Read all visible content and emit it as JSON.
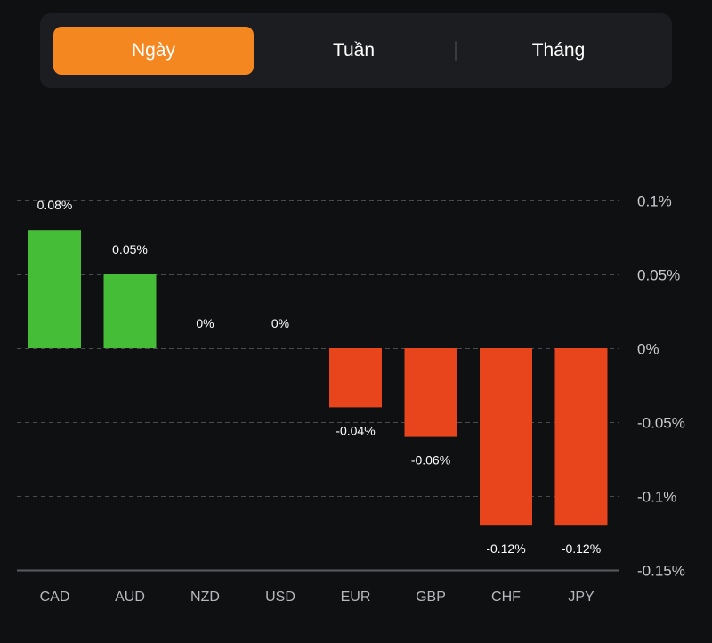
{
  "tabs": {
    "active_index": 0,
    "items": [
      {
        "label": "Ngày"
      },
      {
        "label": "Tuần"
      },
      {
        "label": "Tháng"
      }
    ]
  },
  "colors": {
    "background": "#0f1012",
    "tab_bar": "#1c1d20",
    "tab_active": "#f58720",
    "positive": "#45bd36",
    "negative": "#e8451c",
    "grid": "#4a4b50",
    "axis": "#5a5b60"
  },
  "chart_data": {
    "type": "bar",
    "title": "",
    "xlabel": "",
    "ylabel": "",
    "categories": [
      "CAD",
      "AUD",
      "NZD",
      "USD",
      "EUR",
      "GBP",
      "CHF",
      "JPY"
    ],
    "values": [
      0.08,
      0.05,
      0,
      0,
      -0.04,
      -0.06,
      -0.12,
      -0.12
    ],
    "value_labels": [
      "0.08%",
      "0.05%",
      "0%",
      "0%",
      "-0.04%",
      "-0.06%",
      "-0.12%",
      "-0.12%"
    ],
    "unit": "%",
    "ylim": [
      -0.15,
      0.1
    ],
    "yticks": [
      0.1,
      0.05,
      0,
      -0.05,
      -0.1,
      -0.15
    ],
    "ytick_labels": [
      "0.1%",
      "0.05%",
      "0%",
      "-0.05%",
      "-0.1%",
      "-0.15%"
    ],
    "y_axis_position": "right",
    "grid": true,
    "grid_style": "dashed",
    "legend": "none"
  }
}
